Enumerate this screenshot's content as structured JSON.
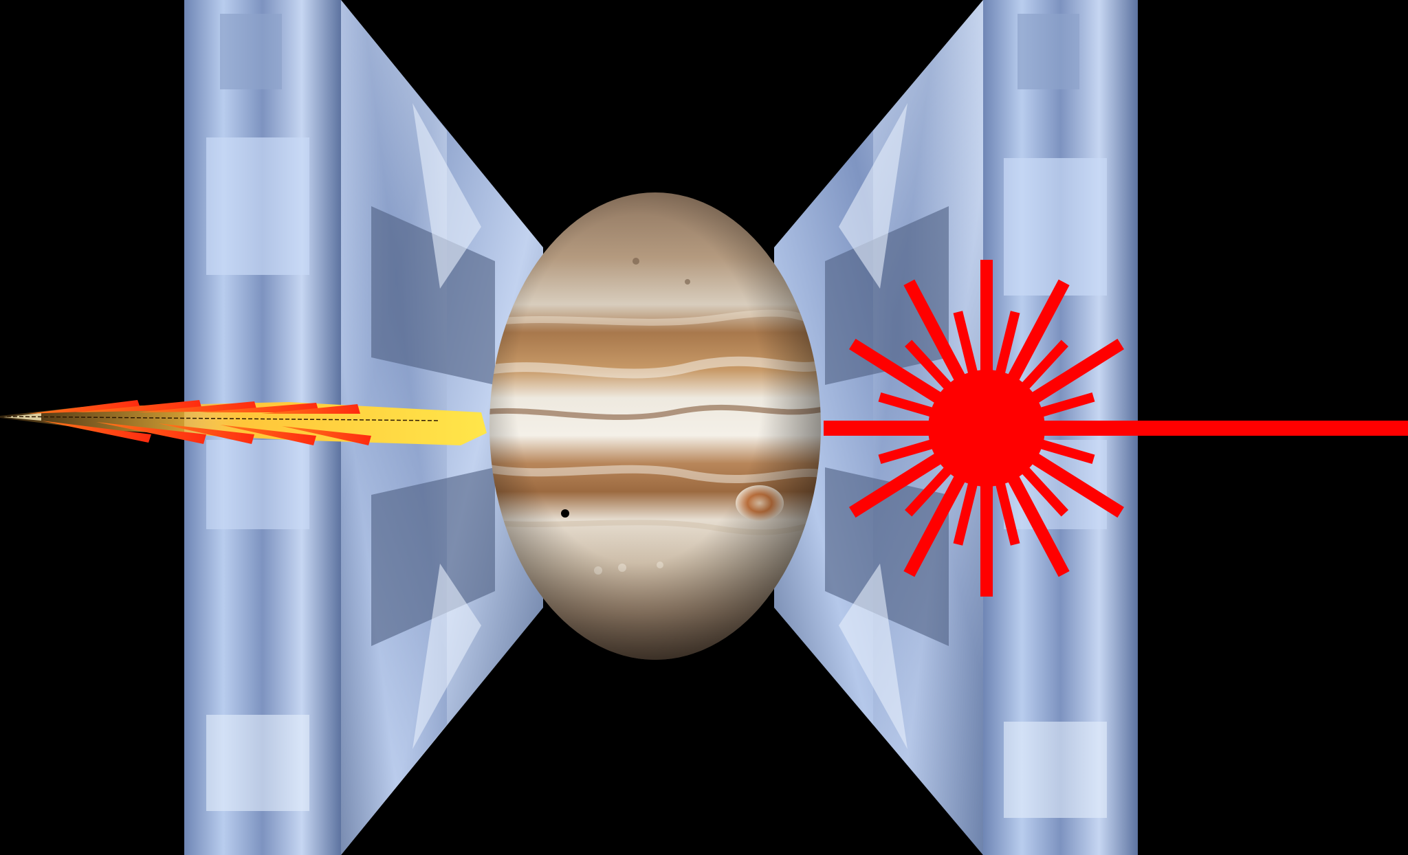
{
  "scene": {
    "background_color": "#000000",
    "subject": "planet-between-diamond-anvils",
    "elements": {
      "left_anvil": {
        "icon": "diamond-anvil-icon",
        "color": "#9fb3d6"
      },
      "right_anvil": {
        "icon": "diamond-anvil-icon",
        "color": "#9fb3d6"
      },
      "planet": {
        "icon": "gas-giant-icon",
        "band_colors": [
          "#c9a27a",
          "#e8e0d0",
          "#a8764a",
          "#f0ebe0",
          "#8a5a34"
        ],
        "spot_color": "#b5653a"
      },
      "shock_wave": {
        "icon": "shock-wave-icon",
        "colors": [
          "#ffd23a",
          "#ff8a1a",
          "#ff3d1a"
        ]
      },
      "laser": {
        "icon": "laser-burst-icon",
        "color": "#ff0000",
        "ray_count": 24
      }
    }
  }
}
